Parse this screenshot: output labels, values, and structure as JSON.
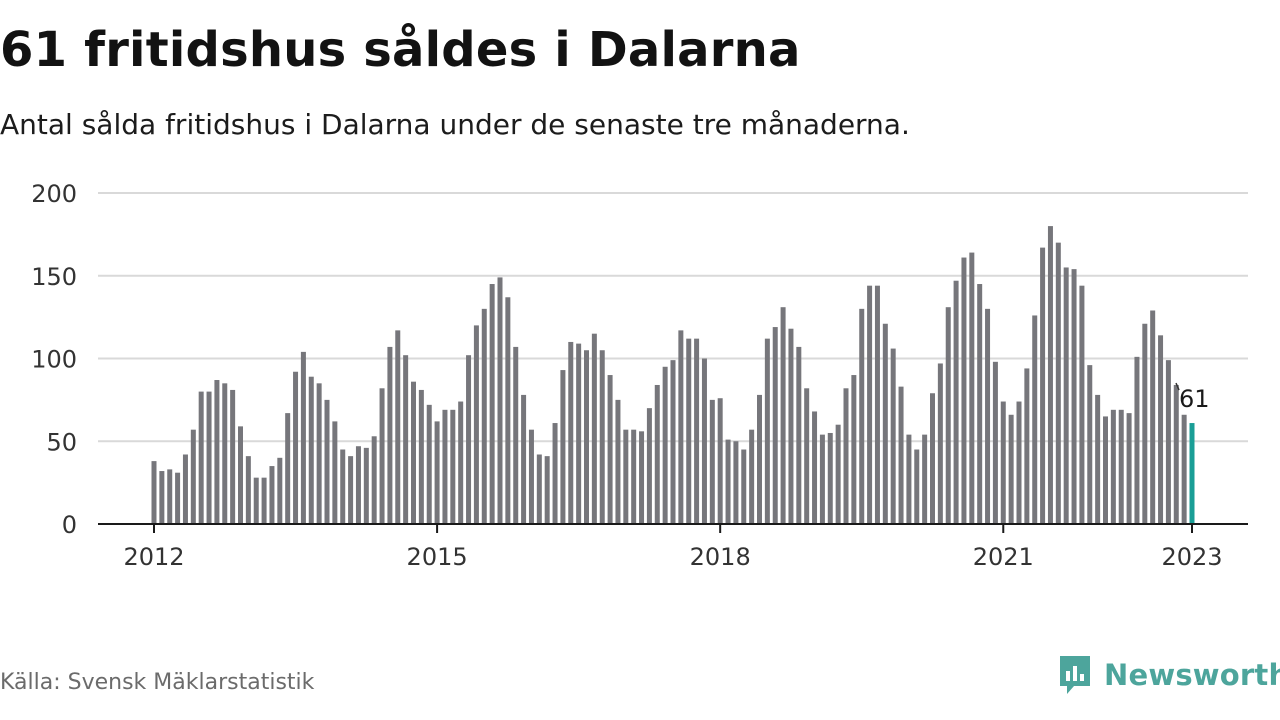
{
  "title": "61 fritidshus såldes i Dalarna",
  "subtitle": "Antal sålda fritidshus i Dalarna under de senaste tre månaderna.",
  "source": "Källa: Svensk Mäklarstatistik",
  "brand": {
    "name": "Newsworthy",
    "icon": "newsworthy-logo-icon",
    "color": "#4da59c"
  },
  "chart_data": {
    "type": "bar",
    "x_start": "2012-01",
    "x_end": "2023-01",
    "x_tick_labels": [
      "2012",
      "2015",
      "2018",
      "2021",
      "2023"
    ],
    "y_ticks": [
      0,
      50,
      100,
      150,
      200
    ],
    "ylim": [
      0,
      200
    ],
    "grid": true,
    "bar_color": "#76767b",
    "highlight_color": "#1a9e96",
    "highlight_label": "61",
    "values": [
      38,
      32,
      33,
      31,
      42,
      57,
      80,
      80,
      87,
      85,
      81,
      59,
      41,
      28,
      28,
      35,
      40,
      67,
      92,
      104,
      89,
      85,
      75,
      62,
      45,
      41,
      47,
      46,
      53,
      82,
      107,
      117,
      102,
      86,
      81,
      72,
      62,
      69,
      69,
      74,
      102,
      120,
      130,
      145,
      149,
      137,
      107,
      78,
      57,
      42,
      41,
      61,
      93,
      110,
      109,
      105,
      115,
      105,
      90,
      75,
      57,
      57,
      56,
      70,
      84,
      95,
      99,
      117,
      112,
      112,
      100,
      75,
      76,
      51,
      50,
      45,
      57,
      78,
      112,
      119,
      131,
      118,
      107,
      82,
      68,
      54,
      55,
      60,
      82,
      90,
      130,
      144,
      144,
      121,
      106,
      83,
      54,
      45,
      54,
      79,
      97,
      131,
      147,
      161,
      164,
      145,
      130,
      98,
      74,
      66,
      74,
      94,
      126,
      167,
      180,
      170,
      155,
      154,
      144,
      96,
      78,
      65,
      69,
      69,
      67,
      101,
      121,
      129,
      114,
      99,
      84,
      66,
      61
    ]
  }
}
